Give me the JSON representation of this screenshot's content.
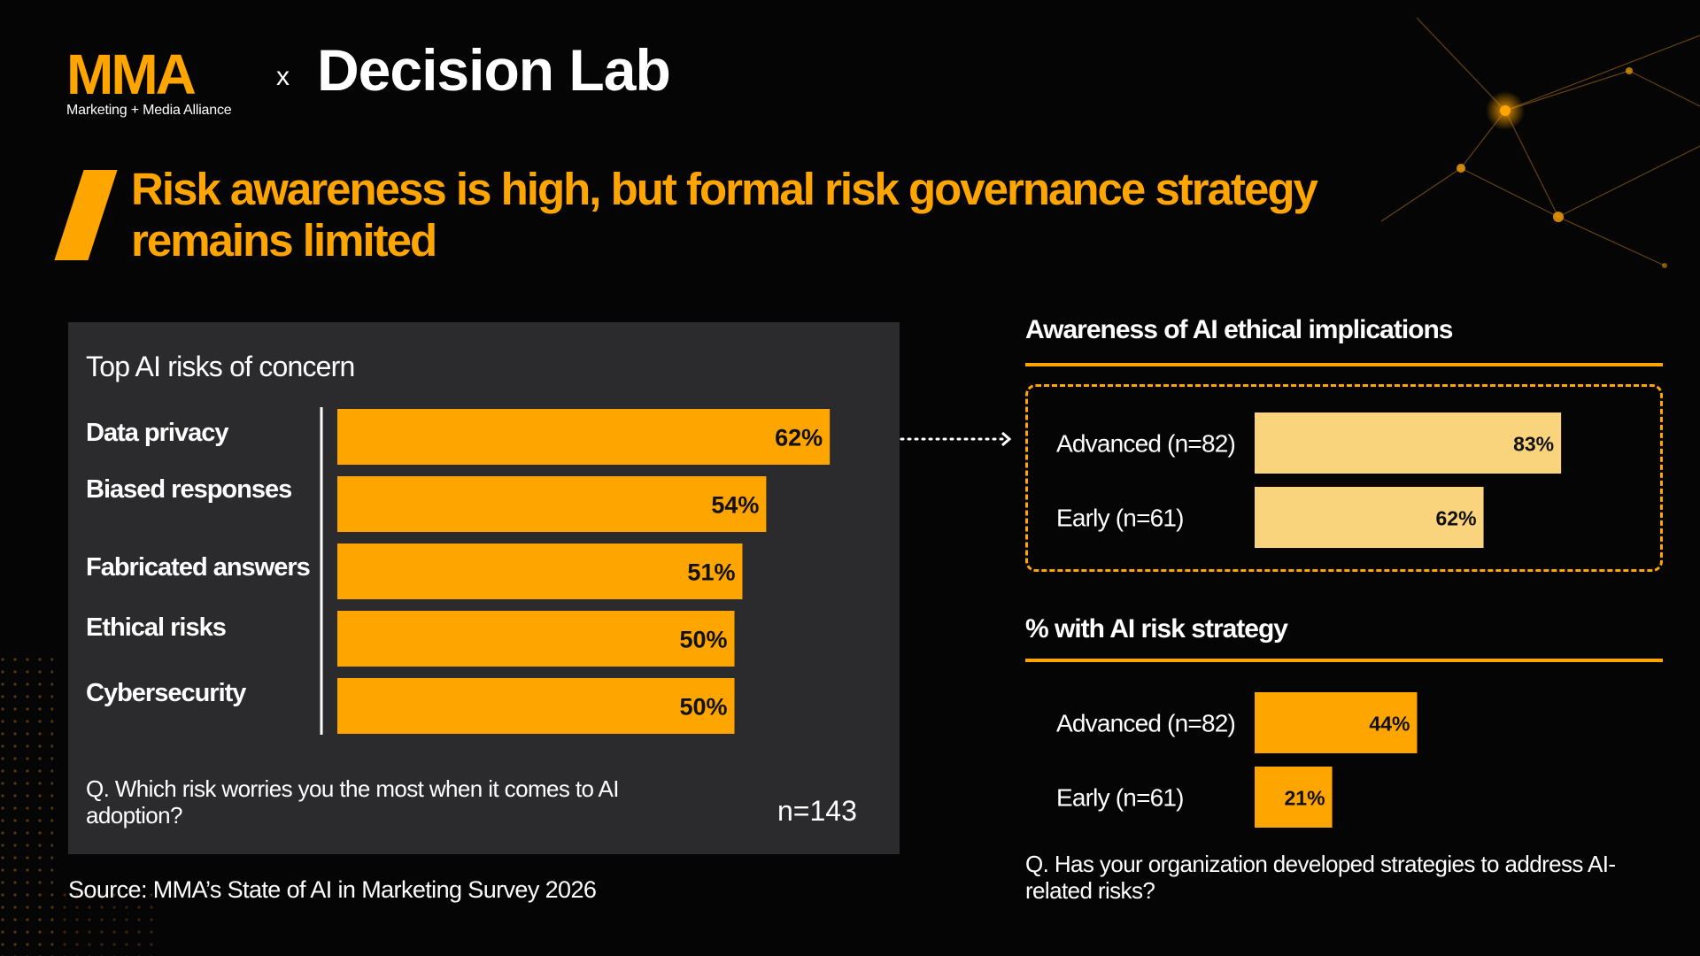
{
  "header": {
    "logo_mark": "MMA",
    "logo_subtitle": "Marketing + Media Alliance",
    "separator": "x",
    "partner": "Decision Lab"
  },
  "title": "Risk awareness is high, but formal risk governance strategy remains limited",
  "colors": {
    "accent": "#FFA500",
    "light_accent": "#FAD47C",
    "panel": "#2B2B2D",
    "background": "#050505"
  },
  "left_panel": {
    "question": "Q. Which risk worries you the most when it comes to AI adoption?",
    "n_label": "n=143"
  },
  "source": "Source: MMA’s State of AI in Marketing Survey 2026",
  "awareness": {
    "title": "Awareness of AI ethical implications"
  },
  "strategy": {
    "title": "% with AI risk strategy",
    "question": "Q. Has your organization developed strategies to address AI-related risks?"
  },
  "chart_data": [
    {
      "type": "bar",
      "orientation": "horizontal",
      "title": "Top AI risks of concern",
      "categories": [
        "Data privacy",
        "Biased responses",
        "Fabricated answers",
        "Ethical risks",
        "Cybersecurity"
      ],
      "values": [
        62,
        54,
        51,
        50,
        50
      ],
      "labels": [
        "62%",
        "54%",
        "51%",
        "50%",
        "50%"
      ],
      "color": "#FFA500",
      "xlim": [
        0,
        100
      ]
    },
    {
      "type": "bar",
      "orientation": "horizontal",
      "title": "Awareness of AI ethical implications",
      "categories": [
        "Advanced (n=82)",
        "Early (n=61)"
      ],
      "values": [
        83,
        62
      ],
      "labels": [
        "83%",
        "62%"
      ],
      "color": "#FAD47C",
      "xlim": [
        0,
        100
      ]
    },
    {
      "type": "bar",
      "orientation": "horizontal",
      "title": "% with AI risk strategy",
      "categories": [
        "Advanced (n=82)",
        "Early (n=61)"
      ],
      "values": [
        44,
        21
      ],
      "labels": [
        "44%",
        "21%"
      ],
      "color": "#FFA500",
      "xlim": [
        0,
        100
      ]
    }
  ]
}
